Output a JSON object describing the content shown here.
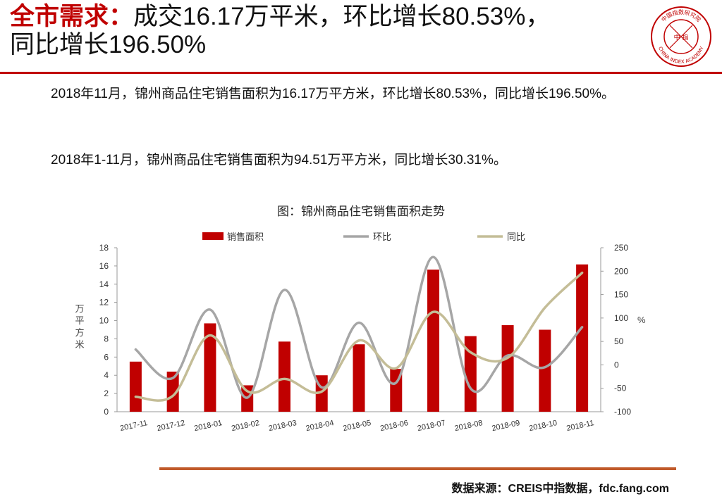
{
  "title": {
    "highlight": "全市需求",
    "colon": "：",
    "rest_line1": "成交16.17万平米，环比增长80.53%，",
    "rest_line2": "同比增长196.50%"
  },
  "logo": {
    "center_chars": "中 指",
    "top_text": "中国指数研究院",
    "bottom_text": "CHINA INDEX ACADEMY"
  },
  "paragraphs": {
    "p1": "2018年11月，锦州商品住宅销售面积为16.17万平方米，环比增长80.53%，同比增长196.50%。",
    "p2": "2018年1-11月，锦州商品住宅销售面积为94.51万平方米，同比增长30.31%。"
  },
  "chart_data": {
    "type": "bar",
    "title": "图：锦州商品住宅销售面积走势",
    "categories": [
      "2017-11",
      "2017-12",
      "2018-01",
      "2018-02",
      "2018-03",
      "2018-04",
      "2018-05",
      "2018-06",
      "2018-07",
      "2018-08",
      "2018-09",
      "2018-10",
      "2018-11"
    ],
    "series": [
      {
        "name": "销售面积",
        "type": "bar",
        "axis": "left",
        "color": "#c00000",
        "values": [
          5.5,
          4.4,
          9.7,
          2.9,
          7.7,
          4.0,
          7.4,
          4.7,
          15.6,
          8.3,
          9.5,
          9.0,
          16.17
        ]
      },
      {
        "name": "环比",
        "type": "line",
        "axis": "right",
        "color": "#a6a6a6",
        "values": [
          33,
          -28,
          118,
          -70,
          160,
          -48,
          90,
          -38,
          230,
          -50,
          20,
          -5,
          80.53
        ]
      },
      {
        "name": "同比",
        "type": "line",
        "axis": "right",
        "color": "#c4bd97",
        "values": [
          -68,
          -66,
          63,
          -56,
          -30,
          -57,
          52,
          -7,
          113,
          27,
          15,
          122,
          196.5
        ]
      }
    ],
    "ylabel_left": "万平方米",
    "ylabel_right": "%",
    "ylim_left": [
      0,
      18
    ],
    "yticks_left": [
      0,
      2,
      4,
      6,
      8,
      10,
      12,
      14,
      16,
      18
    ],
    "ylim_right": [
      -100,
      250
    ],
    "yticks_right": [
      -100,
      -50,
      0,
      50,
      100,
      150,
      200,
      250
    ],
    "legend_position": "top",
    "grid": false
  },
  "source": "数据来源：CREIS中指数据，fdc.fang.com"
}
